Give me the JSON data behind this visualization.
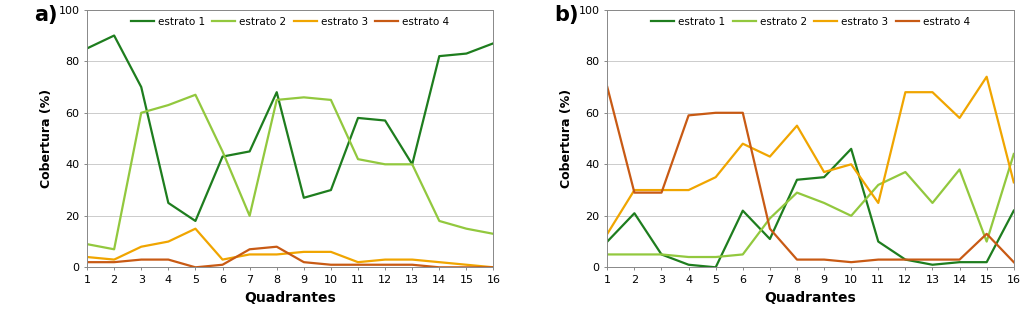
{
  "quadrantes": [
    1,
    2,
    3,
    4,
    5,
    6,
    7,
    8,
    9,
    10,
    11,
    12,
    13,
    14,
    15,
    16
  ],
  "panel_a": {
    "estrato1": [
      85,
      90,
      70,
      25,
      18,
      43,
      45,
      68,
      27,
      30,
      58,
      57,
      40,
      82,
      83,
      87
    ],
    "estrato2": [
      9,
      7,
      60,
      63,
      67,
      45,
      20,
      65,
      66,
      65,
      42,
      40,
      40,
      18,
      15,
      13
    ],
    "estrato3": [
      4,
      3,
      8,
      10,
      15,
      3,
      5,
      5,
      6,
      6,
      2,
      3,
      3,
      2,
      1,
      0
    ],
    "estrato4": [
      2,
      2,
      3,
      3,
      0,
      1,
      7,
      8,
      2,
      1,
      1,
      1,
      1,
      0,
      0,
      0
    ]
  },
  "panel_b": {
    "estrato1": [
      10,
      21,
      5,
      1,
      0,
      22,
      11,
      34,
      35,
      46,
      10,
      3,
      1,
      2,
      2,
      22
    ],
    "estrato2": [
      5,
      5,
      5,
      4,
      4,
      5,
      19,
      29,
      25,
      20,
      32,
      37,
      25,
      38,
      10,
      44
    ],
    "estrato3": [
      13,
      30,
      30,
      30,
      35,
      48,
      43,
      55,
      37,
      40,
      25,
      68,
      68,
      58,
      74,
      33
    ],
    "estrato4": [
      70,
      29,
      29,
      59,
      60,
      60,
      15,
      3,
      3,
      2,
      3,
      3,
      3,
      3,
      13,
      2
    ]
  },
  "colors": {
    "estrato1": "#1e7d1e",
    "estrato2": "#92c83e",
    "estrato3": "#f0a500",
    "estrato4": "#c85a14"
  },
  "ylabel": "Cobertura (%)",
  "xlabel": "Quadrantes",
  "ylim": [
    0,
    100
  ],
  "yticks": [
    0,
    20,
    40,
    60,
    80,
    100
  ],
  "legend_labels": [
    "estrato 1",
    "estrato 2",
    "estrato 3",
    "estrato 4"
  ],
  "label_a": "a)",
  "label_b": "b)",
  "linewidth": 1.6,
  "bg_color": "#ffffff",
  "plot_bg": "#ffffff",
  "grid_color": "#cccccc"
}
